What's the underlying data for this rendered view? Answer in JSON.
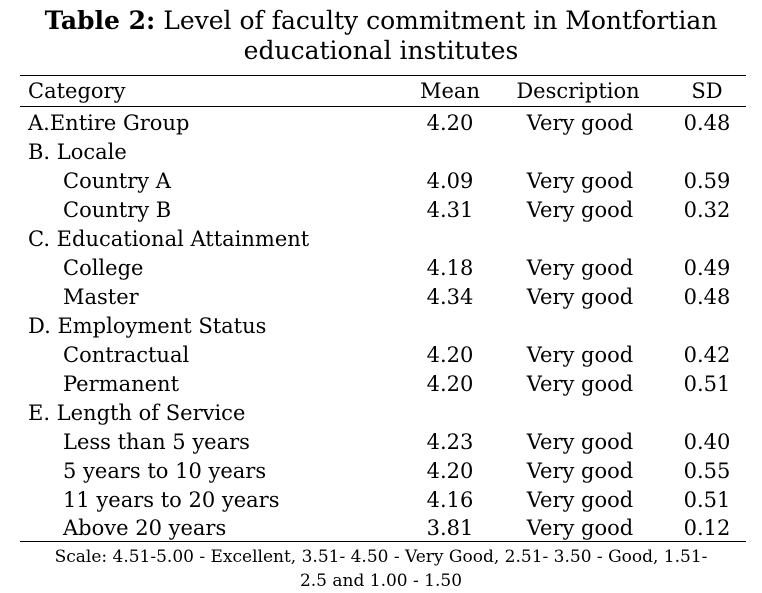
{
  "caption": {
    "label": "Table 2:",
    "text_line1": " Level of faculty commitment in Montfortian",
    "text_line2": "educational institutes"
  },
  "table": {
    "headers": {
      "category": "Category",
      "mean": "Mean",
      "description": "Description",
      "sd": "SD"
    },
    "rows": [
      {
        "category": "A.Entire Group",
        "mean": "4.20",
        "description": "Very good",
        "sd": "0.48"
      },
      {
        "category": "B. Locale",
        "mean": "",
        "description": "",
        "sd": ""
      },
      {
        "category": "Country A",
        "mean": "4.09",
        "description": "Very good",
        "sd": "0.59"
      },
      {
        "category": "Country B",
        "mean": "4.31",
        "description": "Very good",
        "sd": "0.32"
      },
      {
        "category": "C. Educational Attainment",
        "mean": "",
        "description": "",
        "sd": ""
      },
      {
        "category": "College",
        "mean": "4.18",
        "description": "Very good",
        "sd": "0.49"
      },
      {
        "category": "Master",
        "mean": "4.34",
        "description": "Very good",
        "sd": "0.48"
      },
      {
        "category": "D. Employment Status",
        "mean": "",
        "description": "",
        "sd": ""
      },
      {
        "category": "Contractual",
        "mean": "4.20",
        "description": "Very good",
        "sd": "0.42"
      },
      {
        "category": "Permanent",
        "mean": "4.20",
        "description": "Very good",
        "sd": "0.51"
      },
      {
        "category": "E. Length of Service",
        "mean": "",
        "description": "",
        "sd": ""
      },
      {
        "category": "Less than 5 years",
        "mean": "4.23",
        "description": "Very good",
        "sd": "0.40"
      },
      {
        "category": "5 years to 10 years",
        "mean": "4.20",
        "description": "Very good",
        "sd": "0.55"
      },
      {
        "category": "11 years to 20 years",
        "mean": "4.16",
        "description": "Very good",
        "sd": "0.51"
      },
      {
        "category": "Above 20 years",
        "mean": "3.81",
        "description": "Very good",
        "sd": "0.12"
      }
    ]
  },
  "note": {
    "line1": "Scale: 4.51-5.00 - Excellent, 3.51- 4.50 - Very Good, 2.51- 3.50 - Good, 1.51-",
    "line2": "2.5 and 1.00 - 1.50"
  }
}
